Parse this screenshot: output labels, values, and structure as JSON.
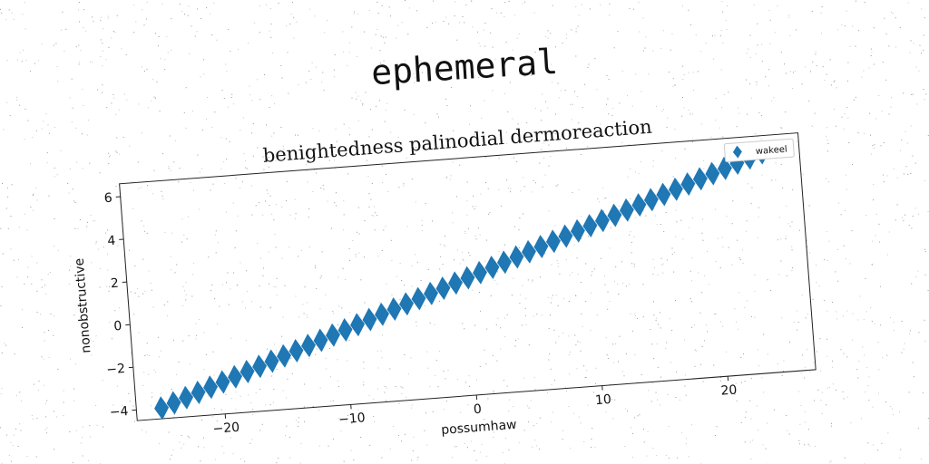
{
  "figure_title": "ephemeral",
  "chart_data": {
    "type": "scatter",
    "title": "benightedness palinodial dermoreaction",
    "xlabel": "possumhaw",
    "ylabel": "nonobstructive",
    "xlim": [
      -27,
      27
    ],
    "ylim": [
      -4.5,
      6.6
    ],
    "xticks": [
      -20,
      -10,
      0,
      10,
      20
    ],
    "yticks": [
      -4,
      -2,
      0,
      2,
      4,
      6
    ],
    "xtick_labels": [
      "−20",
      "−10",
      "0",
      "10",
      "20"
    ],
    "ytick_labels": [
      "−4",
      "−2",
      "0",
      "2",
      "4",
      "6"
    ],
    "legend_position": "top-right",
    "grid": false,
    "series": [
      {
        "name": "wakeel",
        "marker": "diamond",
        "color": "#1f77b4",
        "x": [
          -25.0,
          -24.0,
          -23.0,
          -22.0,
          -21.0,
          -20.0,
          -19.0,
          -18.0,
          -17.0,
          -16.0,
          -15.0,
          -14.0,
          -13.0,
          -12.0,
          -11.0,
          -10.0,
          -9.0,
          -8.0,
          -7.0,
          -6.0,
          -5.0,
          -4.0,
          -3.0,
          -2.0,
          -1.0,
          0.0,
          1.0,
          2.0,
          3.0,
          4.0,
          5.0,
          6.0,
          7.0,
          8.0,
          9.0,
          10.0,
          11.0,
          12.0,
          13.0,
          14.0,
          15.0,
          16.0,
          17.0,
          18.0,
          19.0,
          20.0,
          21.0,
          22.0,
          23.0,
          24.0
        ],
        "y": [
          -4.0,
          -3.8,
          -3.6,
          -3.4,
          -3.2,
          -3.0,
          -2.8,
          -2.6,
          -2.4,
          -2.2,
          -2.0,
          -1.8,
          -1.6,
          -1.4,
          -1.2,
          -1.0,
          -0.8,
          -0.6,
          -0.4,
          -0.2,
          0.0,
          0.2,
          0.4,
          0.6,
          0.8,
          1.0,
          1.2,
          1.4,
          1.6,
          1.8,
          2.0,
          2.2,
          2.4,
          2.6,
          2.8,
          3.0,
          3.2,
          3.4,
          3.6,
          3.8,
          4.0,
          4.2,
          4.4,
          4.6,
          4.8,
          5.0,
          5.2,
          5.4,
          5.6,
          5.8
        ]
      }
    ]
  }
}
